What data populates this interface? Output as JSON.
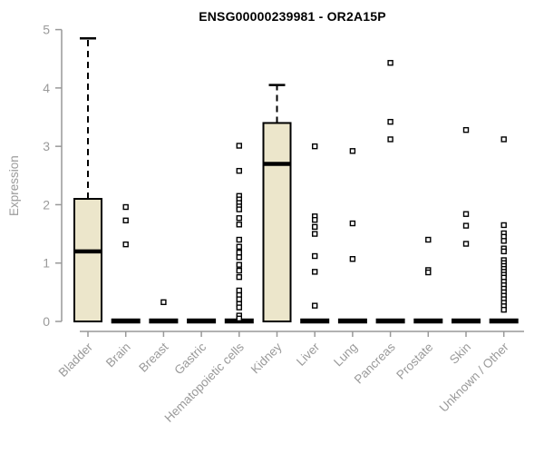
{
  "chart_data": {
    "type": "boxplot",
    "title": "ENSG00000239981 - OR2A15P",
    "xlabel": "",
    "ylabel": "Expression",
    "ylim": [
      0,
      5
    ],
    "yticks": [
      0,
      1,
      2,
      3,
      4,
      5
    ],
    "grid": false,
    "legend": "none",
    "categories": [
      "Bladder",
      "Brain",
      "Breast",
      "Gastric",
      "Hematopoietic cells",
      "Kidney",
      "Liver",
      "Lung",
      "Pancreas",
      "Prostate",
      "Skin",
      "Unknown / Other"
    ],
    "series": [
      {
        "name": "Bladder",
        "q1": 0,
        "median": 1.2,
        "q3": 2.1,
        "whisker_low": 0,
        "whisker_high": 4.85,
        "outliers": []
      },
      {
        "name": "Brain",
        "q1": 0,
        "median": 0,
        "q3": 0,
        "whisker_low": 0,
        "whisker_high": 0,
        "outliers": [
          1.96,
          1.73,
          1.32
        ]
      },
      {
        "name": "Breast",
        "q1": 0,
        "median": 0,
        "q3": 0,
        "whisker_low": 0,
        "whisker_high": 0,
        "outliers": [
          0.33
        ]
      },
      {
        "name": "Gastric",
        "q1": 0,
        "median": 0,
        "q3": 0,
        "whisker_low": 0,
        "whisker_high": 0,
        "outliers": []
      },
      {
        "name": "Hematopoietic cells",
        "q1": 0,
        "median": 0,
        "q3": 0,
        "whisker_low": 0,
        "whisker_high": 0,
        "outliers": [
          3.01,
          2.58,
          2.15,
          2.09,
          2.03,
          1.97,
          1.92,
          1.77,
          1.66,
          1.4,
          1.28,
          1.18,
          1.1,
          0.97,
          0.87,
          0.76,
          0.53,
          0.45,
          0.38,
          0.3,
          0.24,
          0.1,
          0.05
        ]
      },
      {
        "name": "Kidney",
        "q1": 0,
        "median": 2.7,
        "q3": 3.4,
        "whisker_low": 0,
        "whisker_high": 4.05,
        "outliers": []
      },
      {
        "name": "Liver",
        "q1": 0,
        "median": 0,
        "q3": 0,
        "whisker_low": 0,
        "whisker_high": 0,
        "outliers": [
          3.0,
          1.8,
          1.74,
          1.62,
          1.5,
          1.12,
          0.85,
          0.27
        ]
      },
      {
        "name": "Lung",
        "q1": 0,
        "median": 0,
        "q3": 0,
        "whisker_low": 0,
        "whisker_high": 0,
        "outliers": [
          2.92,
          1.68,
          1.07
        ]
      },
      {
        "name": "Pancreas",
        "q1": 0,
        "median": 0,
        "q3": 0,
        "whisker_low": 0,
        "whisker_high": 0,
        "outliers": [
          4.43,
          3.42,
          3.12
        ]
      },
      {
        "name": "Prostate",
        "q1": 0,
        "median": 0,
        "q3": 0,
        "whisker_low": 0,
        "whisker_high": 0,
        "outliers": [
          1.4,
          0.88,
          0.84
        ]
      },
      {
        "name": "Skin",
        "q1": 0,
        "median": 0,
        "q3": 0,
        "whisker_low": 0,
        "whisker_high": 0,
        "outliers": [
          3.28,
          1.84,
          1.64,
          1.33
        ]
      },
      {
        "name": "Unknown / Other",
        "q1": 0,
        "median": 0,
        "q3": 0,
        "whisker_low": 0,
        "whisker_high": 0,
        "outliers": [
          3.12,
          1.65,
          1.51,
          1.45,
          1.38,
          1.25,
          1.2,
          1.05,
          1.0,
          0.95,
          0.9,
          0.85,
          0.8,
          0.75,
          0.68,
          0.62,
          0.56,
          0.5,
          0.44,
          0.38,
          0.32,
          0.26,
          0.2
        ]
      }
    ],
    "colors": {
      "box_fill": "#ECE6CB",
      "box_stroke": "#000000",
      "median": "#000000",
      "whisker": "#000000",
      "outlier_stroke": "#000000",
      "outlier_fill": "#FFFFFF",
      "axis": "#999999",
      "tick_text": "#9A9A9A",
      "title": "#000000",
      "background": "#FFFFFF"
    }
  }
}
